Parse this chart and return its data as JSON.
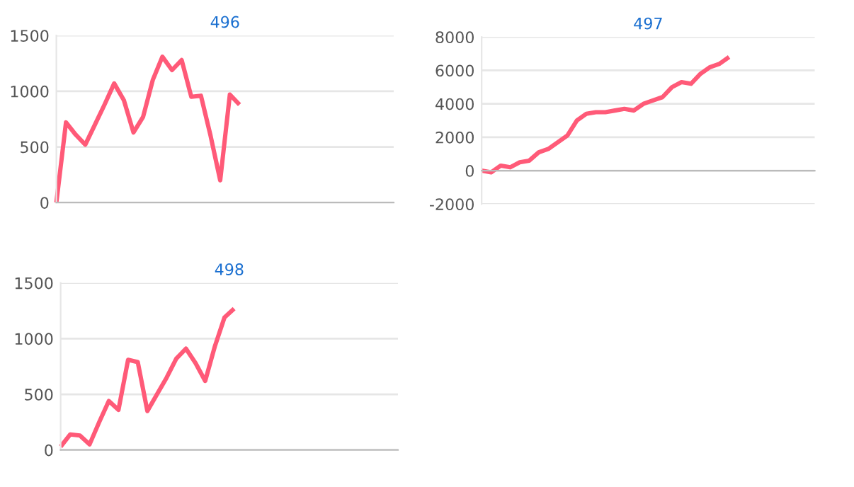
{
  "chart_data": [
    {
      "type": "line",
      "title": "496",
      "categories": [
        null,
        null,
        null,
        null,
        null,
        null,
        null,
        null,
        null,
        null,
        null,
        null,
        null,
        null,
        null,
        null,
        null,
        null,
        null,
        null,
        null,
        null,
        null,
        null,
        null,
        null,
        null,
        null,
        null,
        null,
        null,
        null,
        null,
        null,
        null,
        null
      ],
      "series": [
        {
          "color": "#ff5a78",
          "values": [
            0,
            720,
            610,
            520,
            700,
            880,
            1070,
            920,
            630,
            770,
            1100,
            1310,
            1190,
            1280,
            950,
            960,
            600,
            200,
            970,
            880,
            null,
            null,
            null,
            null,
            null,
            null,
            null,
            null,
            null,
            null,
            null,
            null,
            null,
            null,
            null,
            null
          ]
        }
      ],
      "ylim": [
        0,
        1500
      ],
      "yticks": [
        0,
        500,
        1000,
        1500
      ],
      "grid": "y",
      "tick_labels": "y"
    },
    {
      "type": "line",
      "title": "497",
      "categories": [
        null,
        null,
        null,
        null,
        null,
        null,
        null,
        null,
        null,
        null,
        null,
        null,
        null,
        null,
        null,
        null,
        null,
        null,
        null,
        null,
        null,
        null,
        null,
        null,
        null,
        null,
        null,
        null,
        null,
        null,
        null,
        null,
        null,
        null,
        null,
        null
      ],
      "series": [
        {
          "color": "#ff5a78",
          "values": [
            0,
            -100,
            300,
            200,
            500,
            600,
            1100,
            1300,
            1700,
            2100,
            3000,
            3400,
            3500,
            3500,
            3600,
            3700,
            3600,
            4000,
            4200,
            4400,
            5000,
            5300,
            5200,
            5800,
            6200,
            6400,
            6800,
            null,
            null,
            null,
            null,
            null,
            null,
            null,
            null,
            null
          ]
        }
      ],
      "ylim": [
        -2000,
        8000
      ],
      "yticks": [
        -2000,
        0,
        2000,
        4000,
        6000,
        8000
      ],
      "grid": "y",
      "tick_labels": "y"
    },
    {
      "type": "line",
      "title": "498",
      "categories": [
        null,
        null,
        null,
        null,
        null,
        null,
        null,
        null,
        null,
        null,
        null,
        null,
        null,
        null,
        null,
        null,
        null,
        null,
        null,
        null,
        null,
        null,
        null,
        null,
        null,
        null,
        null,
        null,
        null,
        null,
        null,
        null,
        null,
        null,
        null,
        null
      ],
      "series": [
        {
          "color": "#ff5a78",
          "values": [
            30,
            140,
            130,
            50,
            250,
            440,
            360,
            810,
            790,
            350,
            500,
            650,
            820,
            910,
            780,
            620,
            930,
            1190,
            1270,
            null,
            null,
            null,
            null,
            null,
            null,
            null,
            null,
            null,
            null,
            null,
            null,
            null,
            null,
            null,
            null,
            null
          ]
        }
      ],
      "ylim": [
        0,
        1500
      ],
      "yticks": [
        0,
        500,
        1000,
        1500
      ],
      "grid": "y",
      "tick_labels": "y"
    }
  ]
}
